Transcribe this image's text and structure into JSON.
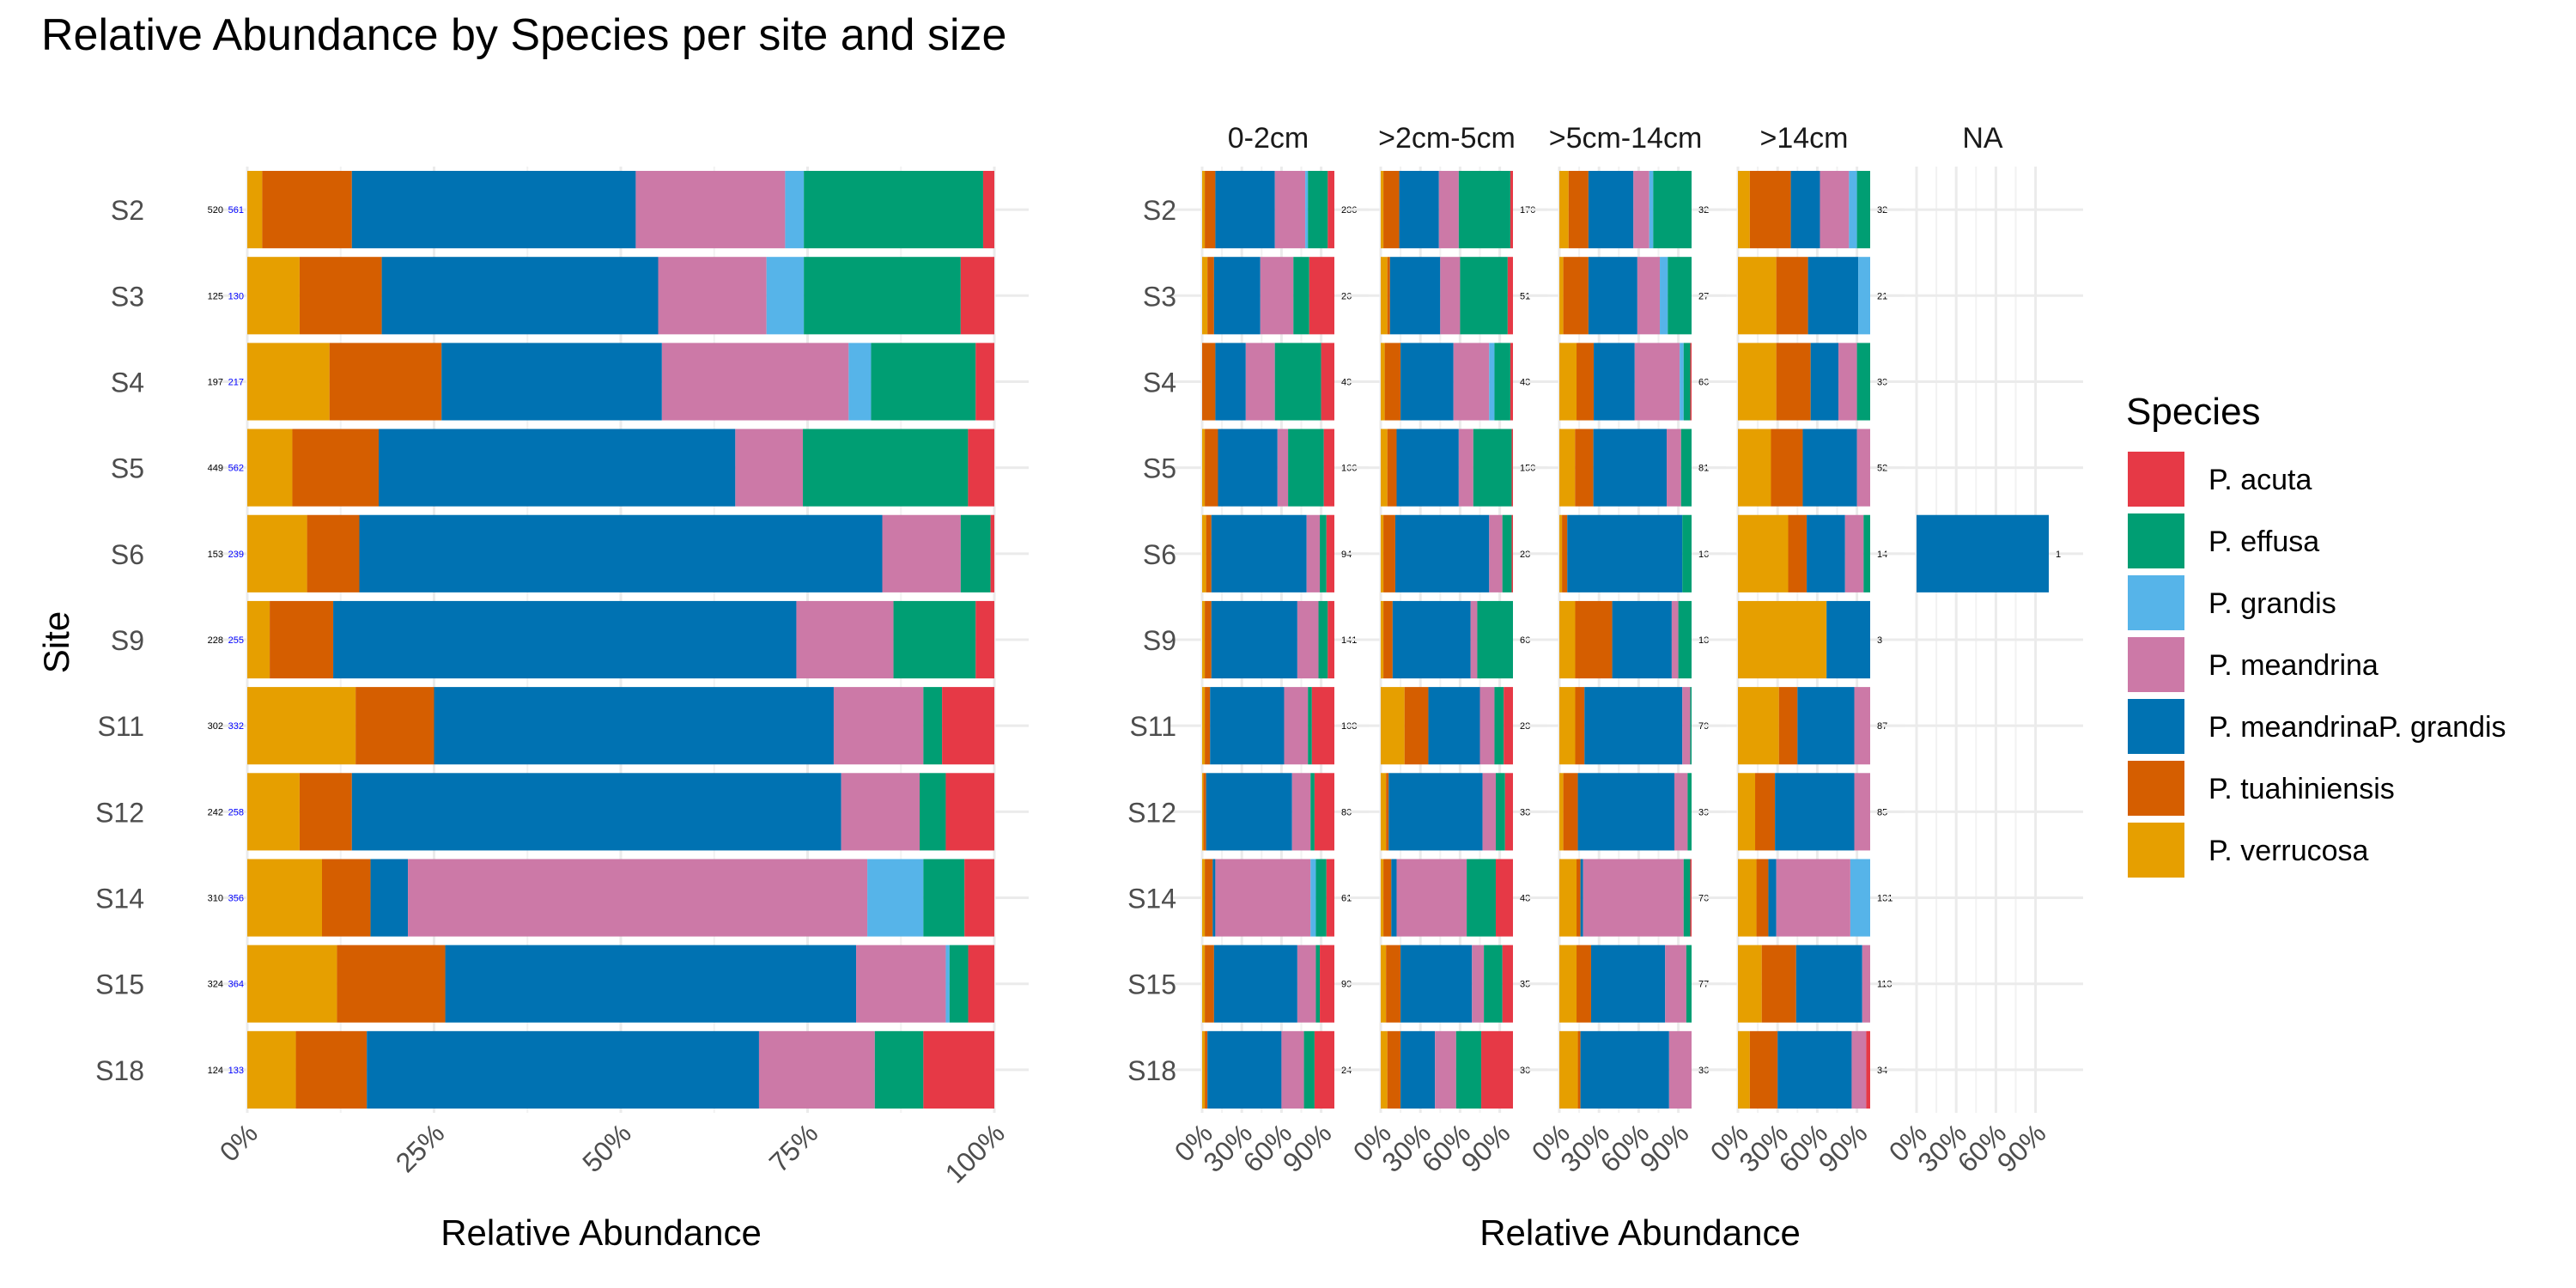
{
  "chart_data": {
    "type": "bar",
    "orientation": "horizontal-stacked-100",
    "title": "Relative Abundance by Species per site and size",
    "ylabel": "Site",
    "xlabel": "Relative Abundance",
    "legend": {
      "title": "Species",
      "position": "right",
      "items": [
        {
          "name": "P. acuta",
          "color": "#E63946"
        },
        {
          "name": "P. effusa",
          "color": "#009E73"
        },
        {
          "name": "P. grandis",
          "color": "#56B4E9"
        },
        {
          "name": "P. meandrina",
          "color": "#CC79A7"
        },
        {
          "name": "P. meandrinaP. grandis",
          "color": "#0072B2"
        },
        {
          "name": "P. tuahiniensis",
          "color": "#D55E00"
        },
        {
          "name": "P. verrucosa",
          "color": "#E69F00"
        }
      ]
    },
    "stack_order": [
      "P. verrucosa",
      "P. tuahiniensis",
      "P. meandrinaP. grandis",
      "P. meandrina",
      "P. grandis",
      "P. effusa",
      "P. acuta"
    ],
    "sites": [
      "S2",
      "S3",
      "S4",
      "S5",
      "S6",
      "S9",
      "S11",
      "S12",
      "S14",
      "S15",
      "S18"
    ],
    "overall": {
      "x_ticks": [
        "0%",
        "25%",
        "50%",
        "75%",
        "100%"
      ],
      "counts_black": [
        "520",
        "125",
        "197",
        "449",
        "153",
        "228",
        "302",
        "242",
        "310",
        "324",
        "124"
      ],
      "counts_blue": [
        "561",
        "130",
        "217",
        "562",
        "239",
        "255",
        "332",
        "258",
        "356",
        "364",
        "133"
      ],
      "values": [
        [
          2,
          12,
          38,
          20,
          2.5,
          24,
          1.5
        ],
        [
          7,
          11,
          37,
          14.5,
          5,
          21,
          4.5
        ],
        [
          11,
          15,
          29.5,
          25,
          3,
          14,
          2.5
        ],
        [
          6,
          11.5,
          47.5,
          9,
          0,
          22,
          3.5
        ],
        [
          8,
          7,
          70,
          10.5,
          0,
          4,
          0.5
        ],
        [
          3,
          8.5,
          62,
          13,
          0,
          11,
          2.5
        ],
        [
          14.5,
          10.5,
          53.5,
          12,
          0,
          2.5,
          7
        ],
        [
          7,
          7,
          65.5,
          10.5,
          0,
          3.5,
          6.5
        ],
        [
          10,
          6.5,
          5,
          61.5,
          7.5,
          5.5,
          4
        ],
        [
          12,
          14.5,
          55,
          12,
          0.5,
          2.5,
          3.5
        ],
        [
          6.5,
          9.5,
          52.5,
          15.5,
          0,
          6.5,
          9.5
        ]
      ]
    },
    "size_panels": [
      {
        "name": "0-2cm",
        "x_ticks": [
          "0%",
          "30%",
          "60%",
          "90%"
        ],
        "counts": [
          "286",
          "26",
          "49",
          "166",
          "94",
          "141",
          "108",
          "80",
          "61",
          "99",
          "24"
        ],
        "values": [
          [
            2,
            8,
            45,
            23,
            2,
            15,
            5
          ],
          [
            4,
            5,
            35,
            25,
            0,
            12,
            19
          ],
          [
            0,
            10,
            23,
            22,
            0,
            35,
            10
          ],
          [
            2,
            10,
            45,
            8,
            0,
            27,
            8
          ],
          [
            3,
            4,
            72,
            10,
            0,
            5,
            6
          ],
          [
            2,
            5,
            65,
            16,
            0,
            7,
            5
          ],
          [
            2,
            4,
            56,
            18,
            0,
            3,
            17
          ],
          [
            1,
            2,
            65,
            14,
            0,
            3,
            15
          ],
          [
            2,
            6,
            2,
            72,
            4,
            8,
            6
          ],
          [
            2,
            7,
            63,
            14,
            0,
            3,
            11
          ],
          [
            2,
            2,
            56,
            17,
            0,
            8,
            15
          ]
        ]
      },
      {
        "name": ">2cm-5cm",
        "x_ticks": [
          "0%",
          "30%",
          "60%",
          "90%"
        ],
        "counts": [
          "170",
          "51",
          "43",
          "150",
          "28",
          "66",
          "28",
          "38",
          "48",
          "35",
          "30"
        ],
        "values": [
          [
            2,
            12,
            30,
            15,
            0,
            39,
            2
          ],
          [
            5,
            2,
            38,
            15,
            0,
            36,
            4
          ],
          [
            3,
            12,
            40,
            27,
            4,
            12,
            2
          ],
          [
            5,
            7,
            47,
            11,
            0,
            29,
            1
          ],
          [
            2,
            9,
            71,
            10,
            0,
            7,
            1
          ],
          [
            2,
            7,
            59,
            5,
            0,
            27,
            0
          ],
          [
            18,
            18,
            39,
            11,
            0,
            7,
            7
          ],
          [
            4,
            2,
            71,
            10,
            0,
            7,
            6
          ],
          [
            2,
            6,
            4,
            53,
            0,
            22,
            13
          ],
          [
            4,
            11,
            54,
            9,
            0,
            14,
            8
          ],
          [
            5,
            10,
            26,
            16,
            0,
            19,
            24
          ]
        ]
      },
      {
        "name": ">5cm-14cm",
        "x_ticks": [
          "0%",
          "30%",
          "60%",
          "90%"
        ],
        "counts": [
          "32",
          "27",
          "66",
          "81",
          "16",
          "18",
          "79",
          "39",
          "70",
          "77",
          "36"
        ],
        "values": [
          [
            7,
            15,
            34,
            12,
            3,
            29,
            0
          ],
          [
            3,
            19,
            37,
            17,
            6,
            18,
            0
          ],
          [
            13,
            13,
            31,
            34,
            3,
            5,
            1
          ],
          [
            12,
            14,
            56,
            11,
            0,
            8,
            0
          ],
          [
            2,
            4,
            87,
            0,
            0,
            7,
            0
          ],
          [
            12,
            28,
            45,
            5,
            0,
            10,
            0
          ],
          [
            12,
            7,
            74,
            6,
            0,
            1,
            0
          ],
          [
            3,
            11,
            73,
            10,
            0,
            3,
            0
          ],
          [
            13,
            3,
            2,
            76,
            0,
            5,
            1
          ],
          [
            13,
            11,
            56,
            16,
            0,
            4,
            0
          ],
          [
            14,
            2,
            67,
            17,
            0,
            0,
            0
          ]
        ]
      },
      {
        "name": ">14cm",
        "x_ticks": [
          "0%",
          "30%",
          "60%",
          "90%"
        ],
        "counts": [
          "32",
          "21",
          "39",
          "52",
          "14",
          "3",
          "87",
          "85",
          "131",
          "113",
          "34"
        ],
        "values": [
          [
            9,
            31,
            22,
            22,
            6,
            10,
            0
          ],
          [
            29,
            24,
            38,
            0,
            9,
            0,
            0
          ],
          [
            29,
            26,
            21,
            14,
            0,
            10,
            0
          ],
          [
            25,
            24,
            41,
            10,
            0,
            0,
            0
          ],
          [
            38,
            14,
            29,
            14,
            0,
            5,
            0
          ],
          [
            67,
            0,
            33,
            0,
            0,
            0,
            0
          ],
          [
            31,
            14,
            43,
            12,
            0,
            0,
            0
          ],
          [
            13,
            15,
            60,
            12,
            0,
            0,
            0
          ],
          [
            14,
            9,
            6,
            56,
            15,
            0,
            0
          ],
          [
            18,
            26,
            50,
            6,
            0,
            0,
            0
          ],
          [
            9,
            21,
            56,
            11,
            0,
            0,
            3
          ]
        ]
      },
      {
        "name": "NA",
        "x_ticks": [
          "0%",
          "30%",
          "60%",
          "90%"
        ],
        "counts": [
          "",
          "",
          "",
          "",
          "1",
          "",
          "",
          "",
          "",
          "",
          ""
        ],
        "values": [
          [
            0,
            0,
            0,
            0,
            0,
            0,
            0
          ],
          [
            0,
            0,
            0,
            0,
            0,
            0,
            0
          ],
          [
            0,
            0,
            0,
            0,
            0,
            0,
            0
          ],
          [
            0,
            0,
            0,
            0,
            0,
            0,
            0
          ],
          [
            0,
            0,
            100,
            0,
            0,
            0,
            0
          ],
          [
            0,
            0,
            0,
            0,
            0,
            0,
            0
          ],
          [
            0,
            0,
            0,
            0,
            0,
            0,
            0
          ],
          [
            0,
            0,
            0,
            0,
            0,
            0,
            0
          ],
          [
            0,
            0,
            0,
            0,
            0,
            0,
            0
          ],
          [
            0,
            0,
            0,
            0,
            0,
            0,
            0
          ],
          [
            0,
            0,
            0,
            0,
            0,
            0,
            0
          ]
        ]
      }
    ]
  }
}
